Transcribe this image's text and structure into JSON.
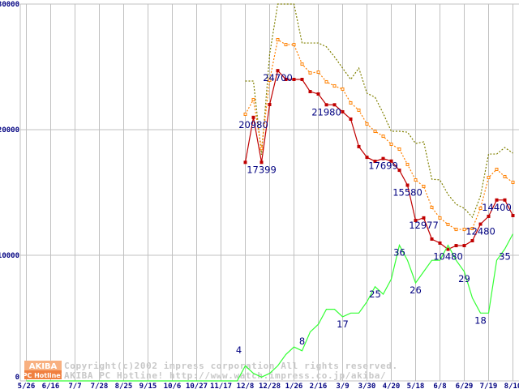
{
  "chart_data": {
    "type": "line",
    "title": "",
    "xlabel": "",
    "ylabel": "",
    "ylim": [
      0,
      30000
    ],
    "count_ylim": [
      0,
      100
    ],
    "grid": true,
    "y_ticks": [
      "0",
      "10000",
      "20000",
      "30000"
    ],
    "y_tick_values": [
      0,
      10000,
      20000,
      30000
    ],
    "x_tick_labels": [
      "5/26",
      "6/16",
      "7/7",
      "7/28",
      "8/25",
      "9/15",
      "10/6",
      "10/27",
      "11/17",
      "12/8",
      "12/28",
      "1/26",
      "2/16",
      "3/9",
      "3/30",
      "4/20",
      "5/18",
      "6/8",
      "6/29",
      "7/19",
      "8/10"
    ],
    "x_tick_week_index": [
      0,
      3,
      6,
      9,
      12,
      15,
      18,
      21,
      24,
      27,
      30,
      33,
      36,
      39,
      42,
      45,
      48,
      51,
      54,
      57,
      60
    ],
    "series": [
      {
        "name": "max_price",
        "color": "#808000",
        "style": "dotted",
        "start_index": 27,
        "values": [
          23870,
          23870,
          18000,
          26000,
          30000,
          30000,
          30000,
          26900,
          26900,
          26900,
          26600,
          25800,
          24900,
          24000,
          24900,
          22900,
          22580,
          21300,
          19870,
          19870,
          19800,
          18900,
          19030,
          16060,
          16000,
          14840,
          14060,
          13740,
          13030,
          14710,
          18060,
          18060,
          18580,
          18130
        ]
      },
      {
        "name": "avg_price",
        "color": "#ff8000",
        "style": "dotted-hollow-square",
        "start_index": 27,
        "values": [
          21230,
          22390,
          18500,
          23940,
          27160,
          26770,
          26770,
          25220,
          24520,
          24580,
          23810,
          23480,
          23230,
          22130,
          21550,
          20450,
          19870,
          19480,
          18840,
          18450,
          17230,
          16000,
          15480,
          13810,
          12970,
          12450,
          12060,
          12060,
          12130,
          13740,
          16190,
          16840,
          16260,
          15810
        ]
      },
      {
        "name": "min_price",
        "color": "#c00000",
        "style": "solid-square",
        "start_index": 27,
        "values": [
          17399,
          20980,
          17399,
          22000,
          24700,
          24000,
          24000,
          24000,
          23030,
          22840,
          21980,
          21980,
          21420,
          20840,
          18650,
          17800,
          17480,
          17699,
          17500,
          16770,
          15580,
          12770,
          12977,
          11290,
          10970,
          10480,
          10770,
          10770,
          11160,
          12480,
          13100,
          14400,
          14400,
          13160
        ]
      },
      {
        "name": "shop_count",
        "color": "#33ff33",
        "style": "solid",
        "axis": "count",
        "start_index": 0,
        "values": [
          0,
          0,
          0,
          0,
          0,
          0,
          0,
          0,
          0,
          0,
          0,
          0,
          0,
          0,
          0,
          0,
          0,
          0,
          0,
          0,
          0,
          0,
          0,
          0,
          0,
          0,
          0,
          4,
          2,
          1,
          2,
          4,
          7,
          9,
          8,
          13,
          15,
          19,
          19,
          17,
          18,
          18,
          21,
          25,
          23,
          27,
          36,
          32,
          26,
          29,
          32,
          32,
          36,
          32,
          29,
          22,
          18,
          18,
          32,
          35,
          39
        ]
      }
    ],
    "annotations": [
      {
        "series": "min_price",
        "index": 28,
        "text": "20980"
      },
      {
        "series": "min_price",
        "index": 29,
        "text": "17399"
      },
      {
        "series": "min_price",
        "index": 31,
        "text": "24700"
      },
      {
        "series": "min_price",
        "index": 37,
        "text": "21980"
      },
      {
        "series": "min_price",
        "index": 44,
        "text": "17699"
      },
      {
        "series": "min_price",
        "index": 47,
        "text": "15580"
      },
      {
        "series": "min_price",
        "index": 49,
        "text": "12977"
      },
      {
        "series": "min_price",
        "index": 52,
        "text": "10480"
      },
      {
        "series": "min_price",
        "index": 56,
        "text": "12480"
      },
      {
        "series": "min_price",
        "index": 58,
        "text": "14400"
      },
      {
        "series": "shop_count",
        "index": 27,
        "text": "4"
      },
      {
        "series": "shop_count",
        "index": 34,
        "text": "8"
      },
      {
        "series": "shop_count",
        "index": 39,
        "text": "17"
      },
      {
        "series": "shop_count",
        "index": 43,
        "text": "25"
      },
      {
        "series": "shop_count",
        "index": 46,
        "text": "36"
      },
      {
        "series": "shop_count",
        "index": 48,
        "text": "26"
      },
      {
        "series": "shop_count",
        "index": 54,
        "text": "29"
      },
      {
        "series": "shop_count",
        "index": 56,
        "text": "18"
      },
      {
        "series": "shop_count",
        "index": 59,
        "text": "35"
      }
    ]
  },
  "watermark": {
    "logo_top": "AKIBA",
    "logo_bottom": "PC Hotline!",
    "copyright": "Copyright(c)2002 impress corporation All rights reserved.",
    "site": "AKIBA PC Hotline!  http://www.watch.impress.co.jp/akiba/"
  }
}
